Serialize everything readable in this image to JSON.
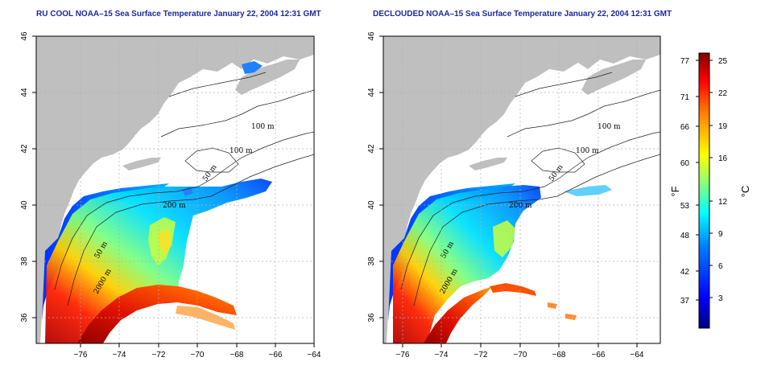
{
  "panels": [
    {
      "title": "RU COOL NOAA–15 Sea Surface Temperature January 22, 2004 12:31 GMT",
      "contour_labels": [
        "100 m",
        "100 m",
        "50 m",
        "200 m",
        "50 m",
        "2000 m"
      ]
    },
    {
      "title": "DECLOUDED NOAA–15 Sea Surface Temperature January 22, 2004 12:31 GMT",
      "contour_labels": [
        "100 m",
        "100 m",
        "50 m",
        "200 m",
        "50 m",
        "2000 m"
      ]
    }
  ],
  "x_ticks": [
    "−76",
    "−74",
    "−72",
    "−70",
    "−68",
    "−66",
    "−64"
  ],
  "y_ticks": [
    "36",
    "38",
    "40",
    "42",
    "44",
    "46"
  ],
  "colorbar": {
    "fahrenheit_ticks": [
      "77",
      "71",
      "66",
      "60",
      "53",
      "48",
      "42",
      "37"
    ],
    "celsius_ticks": [
      "25",
      "22",
      "19",
      "16",
      "12",
      "9",
      "6",
      "3"
    ],
    "fahrenheit_label": "°F",
    "celsius_label": "°C",
    "colors": [
      "#00007f",
      "#0000ff",
      "#0080ff",
      "#00ffff",
      "#80ff80",
      "#ffff00",
      "#ff8000",
      "#ff0000",
      "#800000"
    ]
  },
  "colors": {
    "land": "#bfbfbf",
    "water_nodata": "#ffffff",
    "grid": "#b0b0b0"
  }
}
